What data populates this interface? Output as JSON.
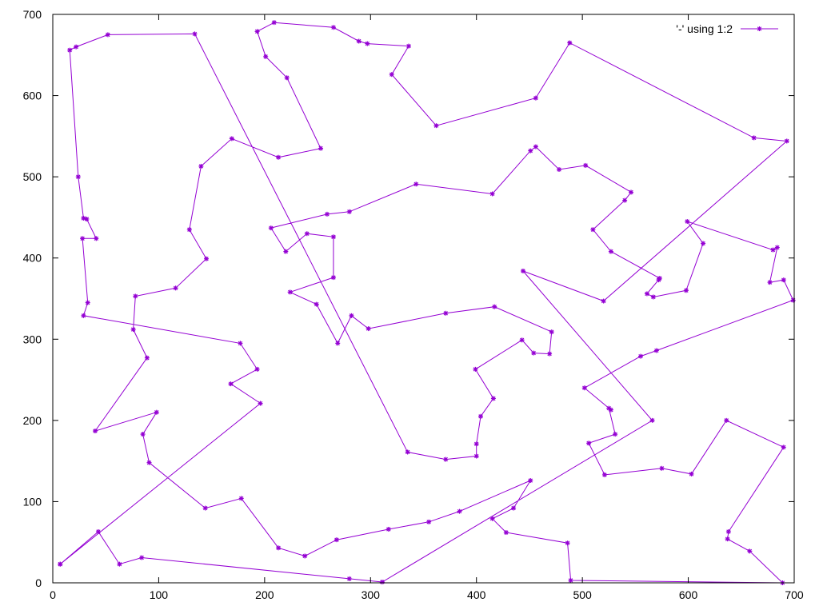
{
  "chart_data": {
    "type": "line",
    "title": "",
    "xlabel": "",
    "ylabel": "",
    "xlim": [
      0,
      700
    ],
    "ylim": [
      0,
      700
    ],
    "x_ticks": [
      0,
      100,
      200,
      300,
      400,
      500,
      600,
      700
    ],
    "y_ticks": [
      0,
      100,
      200,
      300,
      400,
      500,
      600,
      700
    ],
    "grid": false,
    "legend_position": "top-right",
    "series": [
      {
        "name": "'-' using 1:2",
        "color": "#9400d3",
        "marker": "asterisk",
        "points": [
          [
            7,
            23
          ],
          [
            43,
            63
          ],
          [
            63,
            23
          ],
          [
            84,
            31
          ],
          [
            280,
            5
          ],
          [
            311,
            1
          ],
          [
            566,
            200
          ],
          [
            444,
            384
          ],
          [
            520,
            347
          ],
          [
            693,
            544
          ],
          [
            662,
            548
          ],
          [
            488,
            665
          ],
          [
            456,
            597
          ],
          [
            362,
            563
          ],
          [
            320,
            626
          ],
          [
            336,
            661
          ],
          [
            297,
            664
          ],
          [
            289,
            667
          ],
          [
            265,
            684
          ],
          [
            209,
            690
          ],
          [
            193,
            679
          ],
          [
            201,
            648
          ],
          [
            221,
            622
          ],
          [
            253,
            535
          ],
          [
            213,
            524
          ],
          [
            169,
            547
          ],
          [
            140,
            513
          ],
          [
            129,
            435
          ],
          [
            145,
            399
          ],
          [
            116,
            363
          ],
          [
            78,
            353
          ],
          [
            76,
            312
          ],
          [
            89,
            277
          ],
          [
            40,
            187
          ],
          [
            98,
            210
          ],
          [
            85,
            183
          ],
          [
            91,
            148
          ],
          [
            144,
            92
          ],
          [
            178,
            104
          ],
          [
            213,
            43
          ],
          [
            238,
            33
          ],
          [
            268,
            53
          ],
          [
            317,
            66
          ],
          [
            355,
            75
          ],
          [
            384,
            88
          ],
          [
            451,
            126
          ],
          [
            435,
            92
          ],
          [
            415,
            79
          ],
          [
            428,
            62
          ],
          [
            486,
            49
          ],
          [
            489,
            3
          ],
          [
            689,
            0
          ],
          [
            658,
            39
          ],
          [
            637,
            54
          ],
          [
            638,
            63
          ],
          [
            690,
            167
          ],
          [
            636,
            200
          ],
          [
            603,
            134
          ],
          [
            575,
            141
          ],
          [
            521,
            133
          ],
          [
            506,
            172
          ],
          [
            531,
            183
          ],
          [
            525,
            215
          ],
          [
            527,
            213
          ],
          [
            502,
            240
          ],
          [
            555,
            279
          ],
          [
            570,
            286
          ],
          [
            699,
            348
          ],
          [
            690,
            373
          ],
          [
            677,
            370
          ],
          [
            684,
            413
          ],
          [
            680,
            410
          ],
          [
            599,
            445
          ],
          [
            614,
            418
          ],
          [
            598,
            360
          ],
          [
            567,
            352
          ],
          [
            561,
            356
          ],
          [
            572,
            373
          ],
          [
            573,
            375
          ],
          [
            527,
            408
          ],
          [
            510,
            435
          ],
          [
            540,
            471
          ],
          [
            546,
            481
          ],
          [
            503,
            514
          ],
          [
            478,
            509
          ],
          [
            456,
            537
          ],
          [
            451,
            532
          ],
          [
            415,
            479
          ],
          [
            343,
            491
          ],
          [
            280,
            457
          ],
          [
            259,
            454
          ],
          [
            206,
            437
          ],
          [
            220,
            408
          ],
          [
            240,
            430
          ],
          [
            265,
            426
          ],
          [
            265,
            376
          ],
          [
            224,
            358
          ],
          [
            249,
            343
          ],
          [
            269,
            295
          ],
          [
            282,
            329
          ],
          [
            298,
            313
          ],
          [
            371,
            332
          ],
          [
            417,
            340
          ],
          [
            471,
            309
          ],
          [
            469,
            282
          ],
          [
            454,
            283
          ],
          [
            443,
            299
          ],
          [
            399,
            263
          ],
          [
            416,
            227
          ],
          [
            404,
            205
          ],
          [
            400,
            171
          ],
          [
            400,
            156
          ],
          [
            371,
            152
          ],
          [
            335,
            161
          ],
          [
            134,
            676
          ],
          [
            52,
            675
          ],
          [
            22,
            660
          ],
          [
            16,
            656
          ],
          [
            24,
            500
          ],
          [
            29,
            449
          ],
          [
            32,
            448
          ],
          [
            41,
            424
          ],
          [
            28,
            424
          ],
          [
            33,
            345
          ],
          [
            29,
            329
          ],
          [
            177,
            295
          ],
          [
            193,
            263
          ],
          [
            168,
            245
          ],
          [
            196,
            221
          ],
          [
            7,
            23
          ]
        ]
      }
    ]
  }
}
